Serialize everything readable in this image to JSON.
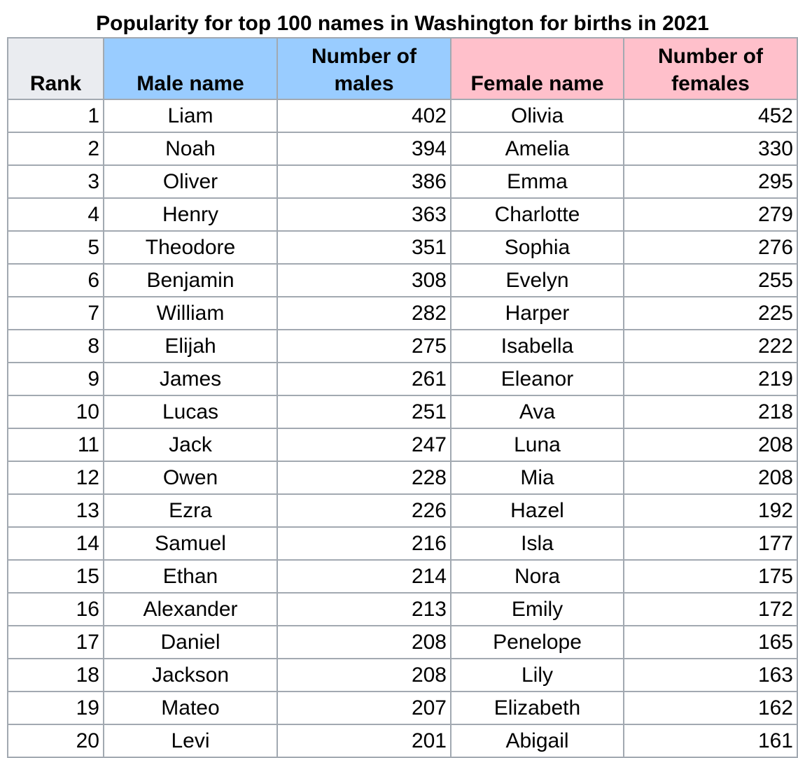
{
  "caption": "Popularity for top 100 names in Washington for births in 2021",
  "colors": {
    "male_header": "#99ccff",
    "female_header": "#ffc0cb",
    "neutral_header": "#eaecf0",
    "border": "#a2a9b1"
  },
  "headers": {
    "rank": "Rank",
    "male_name": "Male name",
    "male_count_line1": "Number of",
    "male_count_line2": "males",
    "female_name": "Female name",
    "female_count_line1": "Number of",
    "female_count_line2": "females"
  },
  "rows": [
    {
      "rank": "1",
      "male": "Liam",
      "male_count": "402",
      "female": "Olivia",
      "female_count": "452"
    },
    {
      "rank": "2",
      "male": "Noah",
      "male_count": "394",
      "female": "Amelia",
      "female_count": "330"
    },
    {
      "rank": "3",
      "male": "Oliver",
      "male_count": "386",
      "female": "Emma",
      "female_count": "295"
    },
    {
      "rank": "4",
      "male": "Henry",
      "male_count": "363",
      "female": "Charlotte",
      "female_count": "279"
    },
    {
      "rank": "5",
      "male": "Theodore",
      "male_count": "351",
      "female": "Sophia",
      "female_count": "276"
    },
    {
      "rank": "6",
      "male": "Benjamin",
      "male_count": "308",
      "female": "Evelyn",
      "female_count": "255"
    },
    {
      "rank": "7",
      "male": "William",
      "male_count": "282",
      "female": "Harper",
      "female_count": "225"
    },
    {
      "rank": "8",
      "male": "Elijah",
      "male_count": "275",
      "female": "Isabella",
      "female_count": "222"
    },
    {
      "rank": "9",
      "male": "James",
      "male_count": "261",
      "female": "Eleanor",
      "female_count": "219"
    },
    {
      "rank": "10",
      "male": "Lucas",
      "male_count": "251",
      "female": "Ava",
      "female_count": "218"
    },
    {
      "rank": "11",
      "male": "Jack",
      "male_count": "247",
      "female": "Luna",
      "female_count": "208"
    },
    {
      "rank": "12",
      "male": "Owen",
      "male_count": "228",
      "female": "Mia",
      "female_count": "208"
    },
    {
      "rank": "13",
      "male": "Ezra",
      "male_count": "226",
      "female": "Hazel",
      "female_count": "192"
    },
    {
      "rank": "14",
      "male": "Samuel",
      "male_count": "216",
      "female": "Isla",
      "female_count": "177"
    },
    {
      "rank": "15",
      "male": "Ethan",
      "male_count": "214",
      "female": "Nora",
      "female_count": "175"
    },
    {
      "rank": "16",
      "male": "Alexander",
      "male_count": "213",
      "female": "Emily",
      "female_count": "172"
    },
    {
      "rank": "17",
      "male": "Daniel",
      "male_count": "208",
      "female": "Penelope",
      "female_count": "165"
    },
    {
      "rank": "18",
      "male": "Jackson",
      "male_count": "208",
      "female": "Lily",
      "female_count": "163"
    },
    {
      "rank": "19",
      "male": "Mateo",
      "male_count": "207",
      "female": "Elizabeth",
      "female_count": "162"
    },
    {
      "rank": "20",
      "male": "Levi",
      "male_count": "201",
      "female": "Abigail",
      "female_count": "161"
    }
  ]
}
